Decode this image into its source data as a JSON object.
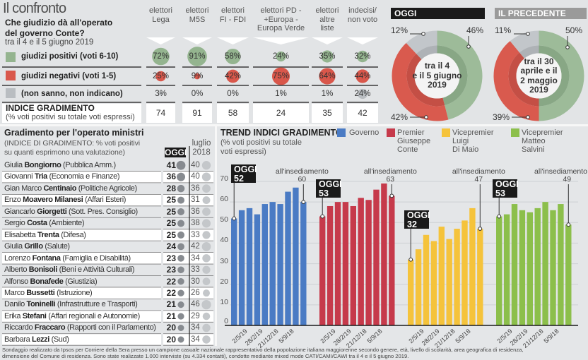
{
  "confronto": {
    "title": "Il confronto",
    "question_lines": [
      "Che giudizio dà all'operato",
      "del governo Conte?"
    ],
    "date": "tra il 4 e il 5 giugno 2019",
    "row_labels": [
      {
        "label": "giudizi positivi (voti 6-10)",
        "color": "#94b48f"
      },
      {
        "label": "giudizi negativi (voti 1-5)",
        "color": "#d9574b"
      },
      {
        "label": "(non sanno, non indicano)",
        "color": "#b9bdc1"
      }
    ],
    "indice_title": "INDICE GRADIMENTO",
    "indice_subtitle": "(% voti positivi su totale voti espressi)",
    "columns": [
      {
        "header_lines": [
          "elettori",
          "Lega"
        ],
        "positivi": "72%",
        "negativi": "25%",
        "non_sanno": "3%",
        "indice": "74"
      },
      {
        "header_lines": [
          "elettori",
          "M5S"
        ],
        "positivi": "91%",
        "negativi": "9%",
        "non_sanno": "0%",
        "indice": "91"
      },
      {
        "header_lines": [
          "elettori",
          "FI - FDI"
        ],
        "positivi": "58%",
        "negativi": "42%",
        "non_sanno": "0%",
        "indice": "58"
      },
      {
        "header_lines": [
          "elettori PD -",
          "+Europa -",
          "Europa Verde"
        ],
        "positivi": "24%",
        "negativi": "75%",
        "non_sanno": "1%",
        "indice": "24"
      },
      {
        "header_lines": [
          "elettori",
          "altre",
          "liste"
        ],
        "positivi": "35%",
        "negativi": "64%",
        "non_sanno": "1%",
        "indice": "35"
      },
      {
        "header_lines": [
          "indecisi/",
          "non voto"
        ],
        "positivi": "32%",
        "negativi": "44%",
        "non_sanno": "24%",
        "indice": "42"
      }
    ]
  },
  "donuts": [
    {
      "header": "OGGI",
      "header_color": "#1a1a1a",
      "center_lines": [
        "tra il 4",
        "e il 5 giugno",
        "2019"
      ],
      "slices": [
        {
          "label": "46%",
          "value": 46,
          "color_outer": "#9dbb99",
          "color_inner": "#88a785"
        },
        {
          "label": "42%",
          "value": 42,
          "color_outer": "#d95a4e",
          "color_inner": "#c44f45"
        },
        {
          "label": "12%",
          "value": 12,
          "color_outer": "#c2c6ca",
          "color_inner": "#aeb2b6"
        }
      ]
    },
    {
      "header": "IL PRECEDENTE",
      "header_color": "#9a9a9a",
      "center_lines": [
        "tra il 30",
        "aprile e il",
        "2 maggio",
        "2019"
      ],
      "slices": [
        {
          "label": "50%",
          "value": 50,
          "color_outer": "#9dbb99",
          "color_inner": "#88a785"
        },
        {
          "label": "39%",
          "value": 39,
          "color_outer": "#d95a4e",
          "color_inner": "#c44f45"
        },
        {
          "label": "11%",
          "value": 11,
          "color_outer": "#c2c6ca",
          "color_inner": "#aeb2b6"
        }
      ]
    }
  ],
  "ministri": {
    "title": "Gradimento per l'operato ministri",
    "subtitle_lines": [
      "(INDICE DI GRADIMENTO: % voti positivi",
      "su quanti esprimono una valutazione)"
    ],
    "col_oggi": "OGGI",
    "col_luglio_lines": [
      "luglio",
      "2018"
    ],
    "oggi_dot_color": "#878b90",
    "luglio_dot_color": "#c4c7ca",
    "rows": [
      {
        "first": "Giulia",
        "last": "Bongiorno",
        "role": "(Pubblica Amm.)",
        "oggi": "41",
        "luglio": "40"
      },
      {
        "first": "Giovanni",
        "last": "Tria",
        "role": "(Economia e Finanze)",
        "oggi": "36",
        "luglio": "40"
      },
      {
        "first": "Gian Marco",
        "last": "Centinaio",
        "role": "(Politiche Agricole)",
        "oggi": "28",
        "luglio": "36"
      },
      {
        "first": "Enzo",
        "last": "Moavero Milanesi",
        "role": "(Affari Esteri)",
        "oggi": "25",
        "luglio": "31"
      },
      {
        "first": "Giancarlo",
        "last": "Giorgetti",
        "role": "(Sott. Pres. Consiglio)",
        "oggi": "25",
        "luglio": "36"
      },
      {
        "first": "Sergio",
        "last": "Costa",
        "role": "(Ambiente)",
        "oggi": "25",
        "luglio": "38"
      },
      {
        "first": "Elisabetta",
        "last": "Trenta",
        "role": "(Difesa)",
        "oggi": "25",
        "luglio": "33"
      },
      {
        "first": "Giulia",
        "last": "Grillo",
        "role": "(Salute)",
        "oggi": "24",
        "luglio": "42"
      },
      {
        "first": "Lorenzo",
        "last": "Fontana",
        "role": "(Famiglia e Disabilità)",
        "oggi": "23",
        "luglio": "34"
      },
      {
        "first": "Alberto",
        "last": "Bonisoli",
        "role": "(Beni e Attività Culturali)",
        "oggi": "23",
        "luglio": "33"
      },
      {
        "first": "Alfonso",
        "last": "Bonafede",
        "role": "(Giustizia)",
        "oggi": "22",
        "luglio": "30"
      },
      {
        "first": "Marco",
        "last": "Bussetti",
        "role": "(Istruzione)",
        "oggi": "22",
        "luglio": "26"
      },
      {
        "first": "Danilo",
        "last": "Toninelli",
        "role": "(Infrastrutture e Trasporti)",
        "oggi": "21",
        "luglio": "46"
      },
      {
        "first": "Erika",
        "last": "Stefani",
        "role": "(Affari regionali e Autonomie)",
        "oggi": "21",
        "luglio": "29"
      },
      {
        "first": "Riccardo",
        "last": "Fraccaro",
        "role": "(Rapporti con il Parlamento)",
        "oggi": "20",
        "luglio": "34"
      },
      {
        "first": "Barbara",
        "last": "Lezzi",
        "role": "(Sud)",
        "oggi": "20",
        "luglio": "34"
      }
    ]
  },
  "chart_data": {
    "type": "bar",
    "title": "TREND INDICI GRADIMENTO",
    "subtitle_lines": [
      "(% voti positivi su totale",
      "voti espressi)"
    ],
    "xlabel": "",
    "ylabel": "",
    "ylim": [
      0,
      70
    ],
    "yticks": [
      "0",
      "10",
      "20",
      "30",
      "40",
      "50",
      "60",
      "70"
    ],
    "grid": true,
    "legend_placement": "top",
    "tick_labels": [
      "2/5/19",
      "28/2/19",
      "21/12/18",
      "5/9/18"
    ],
    "series": [
      {
        "legend_lines": [
          "Governo"
        ],
        "color": "#4a7bc4",
        "values": [
          52,
          56,
          57,
          54,
          59,
          60,
          59,
          65,
          67,
          60
        ],
        "oggi_label": "OGGI",
        "oggi_value": "52",
        "insediamento_label": "all'insediamento",
        "insediamento_value": "60"
      },
      {
        "legend_lines": [
          "Premier",
          "Giuseppe",
          "Conte"
        ],
        "color": "#c63a4b",
        "values": [
          53,
          58,
          60,
          60,
          58,
          62,
          61,
          66,
          69,
          63
        ],
        "oggi_label": "OGGI",
        "oggi_value": "53",
        "insediamento_label": "all'insediamento",
        "insediamento_value": "63"
      },
      {
        "legend_lines": [
          "Vicepremier",
          "Luigi",
          "Di Maio"
        ],
        "color": "#f5c33b",
        "values": [
          32,
          37,
          44,
          41,
          48,
          42,
          47,
          51,
          57,
          47
        ],
        "oggi_label": "OGGI",
        "oggi_value": "32",
        "insediamento_label": "all'insediamento",
        "insediamento_value": "47"
      },
      {
        "legend_lines": [
          "Vicepremier",
          "Matteo",
          "Salvini"
        ],
        "color": "#8cbf4b",
        "values": [
          53,
          54,
          59,
          56,
          55,
          57,
          60,
          56,
          59,
          49
        ],
        "oggi_label": "OGGI",
        "oggi_value": "53",
        "insediamento_label": "all'insediamento",
        "insediamento_value": "49"
      }
    ]
  },
  "footer_lines": [
    "Sondaggio realizzato da Ipsos per Corriere della Sera presso un campione casuale nazionale rappresentativo della popolazione italiana maggiorenne secondo genere, età, livello di scolarità, area geografica di residenza,",
    "dimensione del Comune di residenza. Sono state realizzate 1.000 interviste (su 4.334 contatti), condotte mediante mixed mode CATI/CAMI/CAWI tra il 4 e il 5 giugno 2019."
  ]
}
